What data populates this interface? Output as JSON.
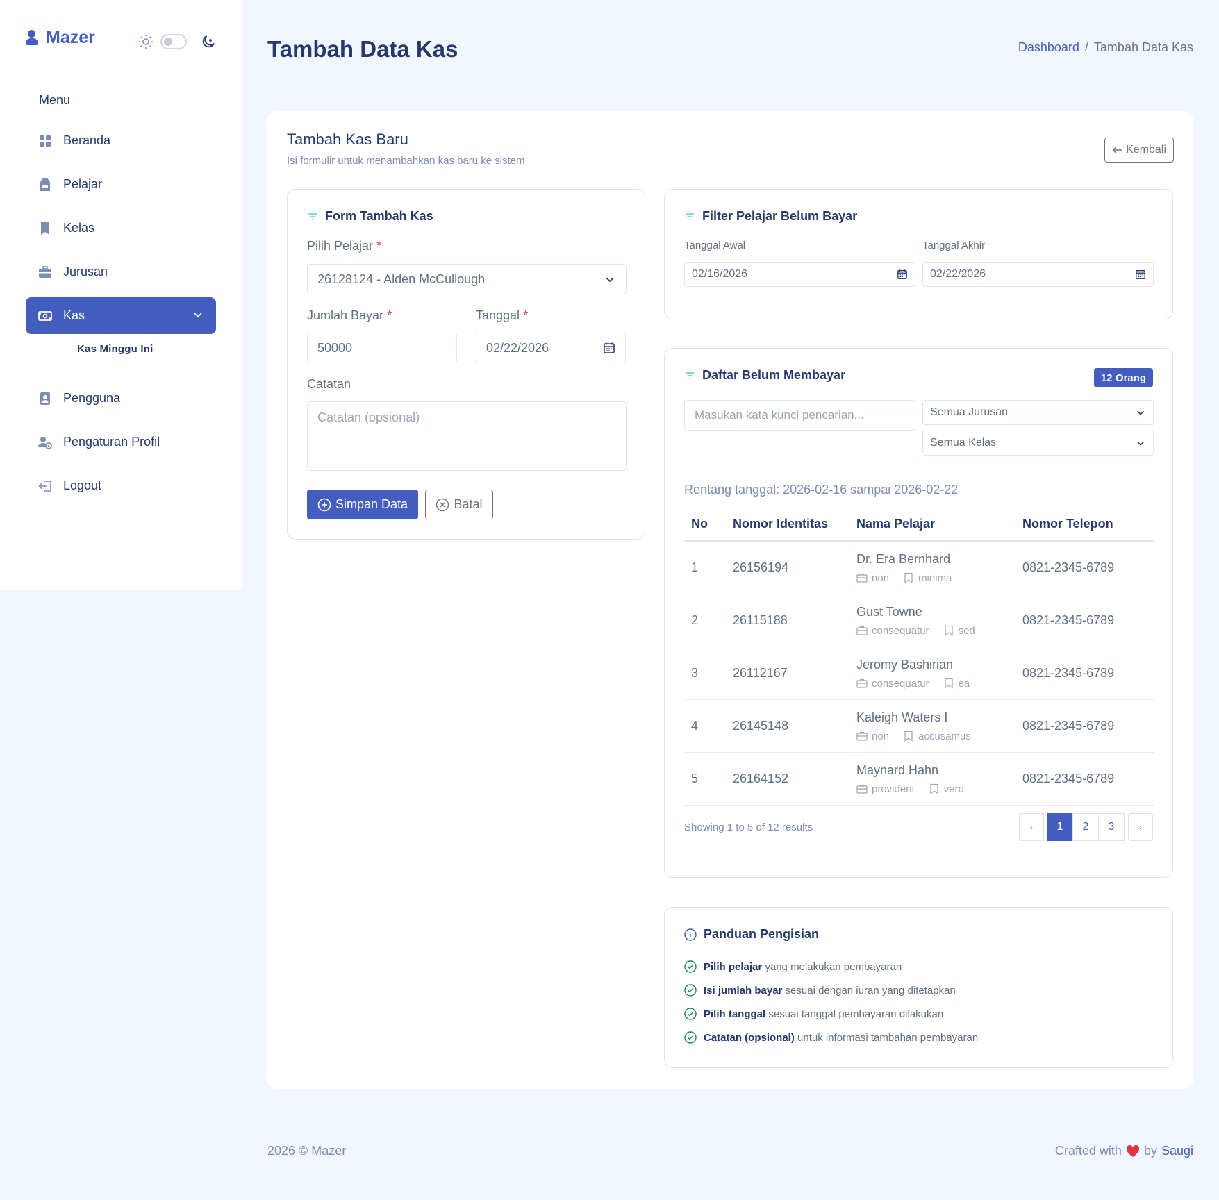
{
  "brand": {
    "name": "Mazer"
  },
  "sidebar": {
    "menu_title": "Menu",
    "items": [
      {
        "label": "Beranda",
        "icon": "grid-icon"
      },
      {
        "label": "Pelajar",
        "icon": "backpack-icon"
      },
      {
        "label": "Kelas",
        "icon": "bookmark-icon"
      },
      {
        "label": "Jurusan",
        "icon": "briefcase-icon"
      },
      {
        "label": "Kas",
        "icon": "cash-icon",
        "active": true
      },
      {
        "label": "Pengguna",
        "icon": "person-badge-icon"
      },
      {
        "label": "Pengaturan Profil",
        "icon": "person-gear-icon"
      },
      {
        "label": "Logout",
        "icon": "logout-icon"
      }
    ],
    "submenu": {
      "label": "Kas Minggu Ini"
    }
  },
  "header": {
    "title": "Tambah Data Kas",
    "breadcrumb": {
      "home": "Dashboard",
      "separator": "/",
      "current": "Tambah Data Kas"
    }
  },
  "card": {
    "title": "Tambah Kas Baru",
    "subtitle": "Isi formulir untuk menambahkan kas baru ke sistem",
    "back_label": "Kembali"
  },
  "form": {
    "title": "Form Tambah Kas",
    "student_label": "Pilih Pelajar",
    "student_value": "26128124 - Alden McCullough",
    "amount_label": "Jumlah Bayar",
    "amount_value": "50000",
    "date_label": "Tanggal",
    "date_value": "02/22/2026",
    "note_label": "Catatan",
    "note_placeholder": "Catatan (opsional)",
    "required_mark": "*",
    "save_label": "Simpan Data",
    "cancel_label": "Batal"
  },
  "filter": {
    "title": "Filter Pelajar Belum Bayar",
    "start_label": "Tanggal Awal",
    "start_value": "02/16/2026",
    "end_label": "Tanggal Akhir",
    "end_value": "02/22/2026"
  },
  "unpaid": {
    "title": "Daftar Belum Membayar",
    "badge": "12 Orang",
    "search_placeholder": "Masukan kata kunci pencarian...",
    "major_select": "Semua Jurusan",
    "class_select": "Semua Kelas",
    "range_text": "Rentang tanggal: 2026-02-16 sampai 2026-02-22",
    "columns": [
      "No",
      "Nomor Identitas",
      "Nama Pelajar",
      "Nomor Telepon"
    ],
    "rows": [
      {
        "no": "1",
        "id": "26156194",
        "name": "Dr. Era Bernhard",
        "major": "non",
        "kelas": "minima",
        "phone": "0821-2345-6789"
      },
      {
        "no": "2",
        "id": "26115188",
        "name": "Gust Towne",
        "major": "consequatur",
        "kelas": "sed",
        "phone": "0821-2345-6789"
      },
      {
        "no": "3",
        "id": "26112167",
        "name": "Jeromy Bashirian",
        "major": "consequatur",
        "kelas": "ea",
        "phone": "0821-2345-6789"
      },
      {
        "no": "4",
        "id": "26145148",
        "name": "Kaleigh Waters I",
        "major": "non",
        "kelas": "accusamus",
        "phone": "0821-2345-6789"
      },
      {
        "no": "5",
        "id": "26164152",
        "name": "Maynard Hahn",
        "major": "provident",
        "kelas": "vero",
        "phone": "0821-2345-6789"
      }
    ],
    "showing": "Showing 1 to 5 of 12 results",
    "pagination": {
      "prev": "‹",
      "pages": [
        "1",
        "2",
        "3"
      ],
      "active": "1",
      "next": "›"
    }
  },
  "guide": {
    "title": "Panduan Pengisian",
    "items": [
      {
        "bold": "Pilih pelajar",
        "text": " yang melakukan pembayaran"
      },
      {
        "bold": "Isi jumlah bayar",
        "text": " sesuai dengan iuran yang ditetapkan"
      },
      {
        "bold": "Pilih tanggal",
        "text": " sesuai tanggal pembayaran dilakukan"
      },
      {
        "bold": "Catatan (opsional)",
        "text": " untuk informasi tambahan pembayaran"
      }
    ]
  },
  "footer": {
    "left": "2026 © Mazer",
    "crafted": "Crafted with",
    "by": "by",
    "author": "Saugi"
  },
  "colors": {
    "primary": "#435ebe",
    "background": "#f2f7ff",
    "heading": "#25396f",
    "danger": "#dc3545"
  }
}
